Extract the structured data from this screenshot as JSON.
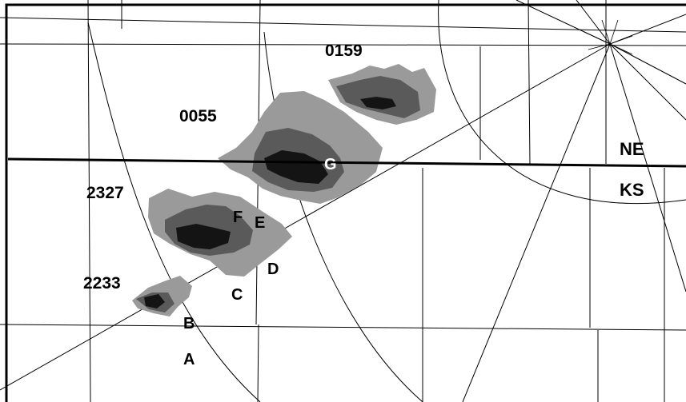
{
  "map": {
    "states": {
      "north": "NE",
      "south": "KS"
    },
    "times": [
      "0159",
      "0055",
      "2327",
      "2233"
    ],
    "points": [
      "A",
      "B",
      "C",
      "D",
      "E",
      "F",
      "G"
    ],
    "colors": {
      "background": "#ffffff",
      "lines": "#000000",
      "echo_light": "#9a9a9a",
      "echo_medium": "#5a5a5a",
      "echo_dark": "#141414"
    }
  }
}
